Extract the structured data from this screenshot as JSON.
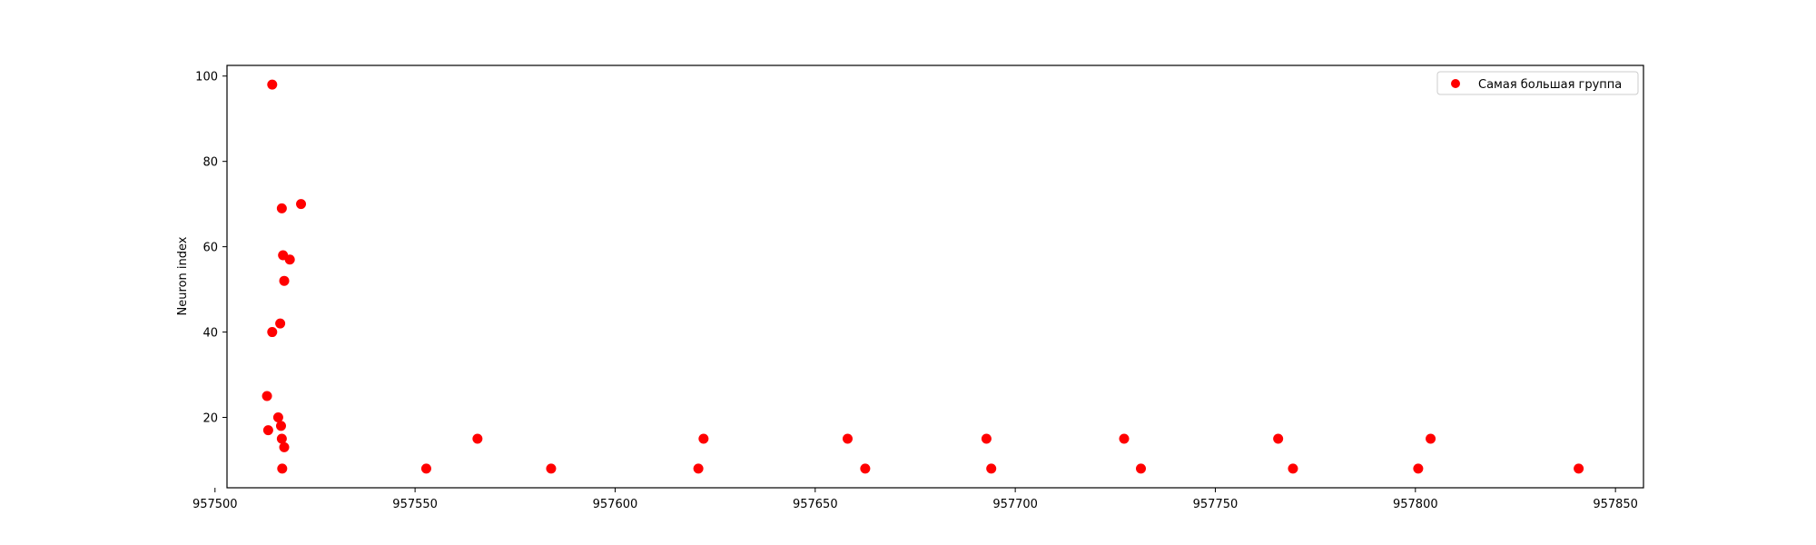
{
  "chart_data": {
    "type": "scatter",
    "title": "",
    "xlabel": "",
    "ylabel": "Neuron index",
    "xlim": [
      957503,
      957857
    ],
    "ylim": [
      3.5,
      102.5
    ],
    "xticks": [
      957500,
      957550,
      957600,
      957650,
      957700,
      957750,
      957800,
      957850
    ],
    "yticks": [
      20,
      40,
      60,
      80,
      100
    ],
    "grid": false,
    "legend_position": "top-right",
    "series": [
      {
        "name": "Самая большая группа",
        "color": "#ff0000",
        "marker": "circle",
        "points": [
          {
            "x": 957514.3,
            "y": 98
          },
          {
            "x": 957521.5,
            "y": 70
          },
          {
            "x": 957516.7,
            "y": 69
          },
          {
            "x": 957517.0,
            "y": 58
          },
          {
            "x": 957518.7,
            "y": 57
          },
          {
            "x": 957517.3,
            "y": 52
          },
          {
            "x": 957516.3,
            "y": 42
          },
          {
            "x": 957514.3,
            "y": 40
          },
          {
            "x": 957513.0,
            "y": 25
          },
          {
            "x": 957515.8,
            "y": 20
          },
          {
            "x": 957516.5,
            "y": 18
          },
          {
            "x": 957513.3,
            "y": 17
          },
          {
            "x": 957516.7,
            "y": 15
          },
          {
            "x": 957517.3,
            "y": 13
          },
          {
            "x": 957516.8,
            "y": 8
          },
          {
            "x": 957552.8,
            "y": 8
          },
          {
            "x": 957565.6,
            "y": 15
          },
          {
            "x": 957584.0,
            "y": 8
          },
          {
            "x": 957620.8,
            "y": 8
          },
          {
            "x": 957622.1,
            "y": 15
          },
          {
            "x": 957658.1,
            "y": 15
          },
          {
            "x": 957662.5,
            "y": 8
          },
          {
            "x": 957692.8,
            "y": 15
          },
          {
            "x": 957694.0,
            "y": 8
          },
          {
            "x": 957727.2,
            "y": 15
          },
          {
            "x": 957731.4,
            "y": 8
          },
          {
            "x": 957765.7,
            "y": 15
          },
          {
            "x": 957769.4,
            "y": 8
          },
          {
            "x": 957800.7,
            "y": 8
          },
          {
            "x": 957803.8,
            "y": 15
          },
          {
            "x": 957840.8,
            "y": 8
          }
        ]
      }
    ]
  }
}
